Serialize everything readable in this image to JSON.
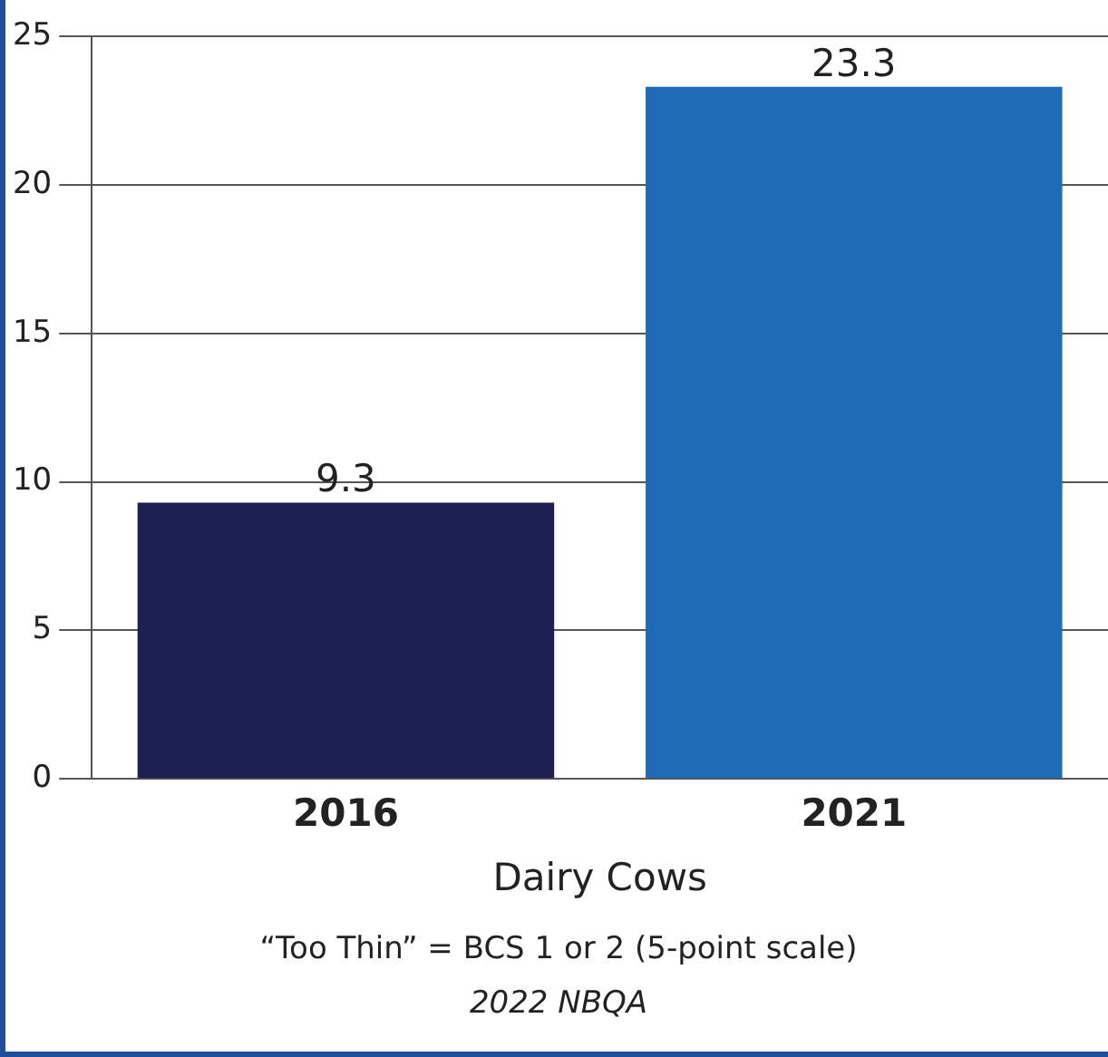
{
  "chart_data": {
    "type": "bar",
    "categories": [
      "2016",
      "2021"
    ],
    "values": [
      9.3,
      23.3
    ],
    "colors": [
      "#1c1f52",
      "#1f6bb8"
    ],
    "xlabel": "Dairy Cows",
    "ylim": [
      0,
      25
    ],
    "yticks": [
      0,
      5,
      10,
      15,
      20,
      25
    ],
    "grid": "y",
    "data_labels": true,
    "annotations": [
      "“Too Thin” = BCS 1 or 2 (5-point scale)",
      "2022 NBQA"
    ]
  }
}
